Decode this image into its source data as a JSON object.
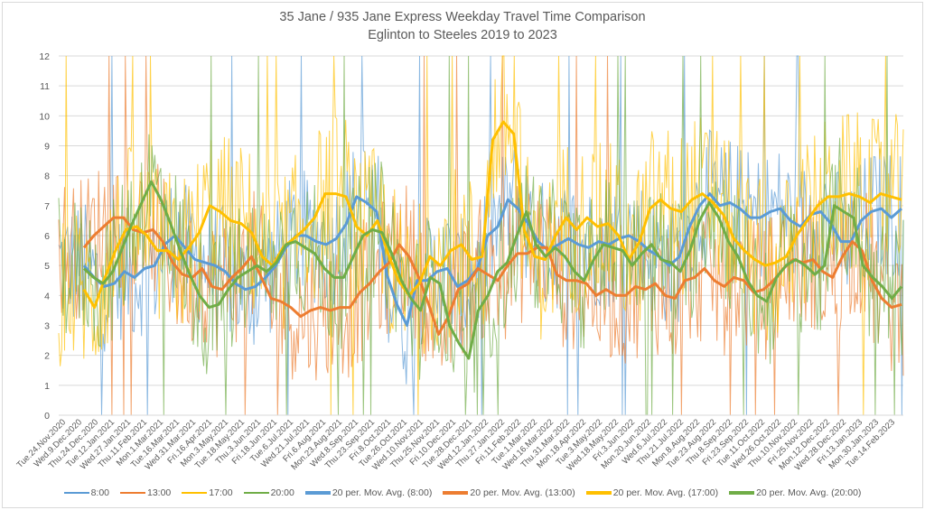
{
  "chart_data": {
    "type": "line",
    "title": "35 Jane / 935 Jane Express Weekday Travel Time Comparison",
    "subtitle": "Eglinton to Steeles 2019 to 2023",
    "xlabel": "",
    "ylabel": "",
    "ylim": [
      0,
      12
    ],
    "yticks": [
      0,
      1,
      2,
      3,
      4,
      5,
      6,
      7,
      8,
      9,
      10,
      11,
      12
    ],
    "grid": true,
    "legend_position": "bottom",
    "x_tick_labels": [
      "Tue.24.Nov.2020",
      "Wed.9.Dec.2020",
      "Thu.24.Dec.2020",
      "Tue.12.Jan.2021",
      "Wed.27.Jan.2021",
      "Thu.11.Feb.2021",
      "Mon.1.Mar.2021",
      "Tue.16.Mar.2021",
      "Wed.31.Mar.2021",
      "Fri.16.Apr.2021",
      "Mon.3.May.2021",
      "Tue.18.May.2021",
      "Thu.3.Jun.2021",
      "Fri.18.Jun.2021",
      "Tue.6.Jul.2021",
      "Wed.21.Jul.2021",
      "Fri.6.Aug.2021",
      "Mon.23.Aug.2021",
      "Wed.8.Sep.2021",
      "Thu.23.Sep.2021",
      "Fri.8.Oct.2021",
      "Tue.26.Oct.2021",
      "Wed.10.Nov.2021",
      "Thu.25.Nov.2021",
      "Fri.10.Dec.2021",
      "Tue.28.Dec.2021",
      "Wed.12.Jan.2022",
      "Thu.27.Jan.2022",
      "Fri.11.Feb.2022",
      "Tue.1.Mar.2022",
      "Wed.16.Mar.2022",
      "Thu.31.Mar.2022",
      "Mon.18.Apr.2022",
      "Tue.3.May.2022",
      "Wed.18.May.2022",
      "Fri.3.Jun.2022",
      "Mon.20.Jun.2022",
      "Wed.6.Jul.2022",
      "Thu.21.Jul.2022",
      "Mon.8.Aug.2022",
      "Tue.23.Aug.2022",
      "Thu.8.Sep.2022",
      "Fri.23.Sep.2022",
      "Tue.11.Oct.2022",
      "Wed.26.Oct.2022",
      "Thu.10.Nov.2022",
      "Fri.25.Nov.2022",
      "Mon.12.Dec.2022",
      "Wed.28.Dec.2022",
      "Fri.13.Jan.2023",
      "Mon.30.Jan.2023",
      "Tue.14.Feb.2023"
    ],
    "points_per_tick": 11,
    "series": [
      {
        "name": "8:00",
        "color": "#5b9bd5",
        "width": "thin",
        "kind": "raw",
        "mean_from": "20 per. Mov. Avg. (8:00)",
        "spread": 2.2
      },
      {
        "name": "13:00",
        "color": "#ed7d31",
        "width": "thin",
        "kind": "raw",
        "mean_from": "20 per. Mov. Avg. (13:00)",
        "spread": 2.4
      },
      {
        "name": "17:00",
        "color": "#ffc000",
        "width": "thin",
        "kind": "raw",
        "mean_from": "20 per. Mov. Avg. (17:00)",
        "spread": 2.8
      },
      {
        "name": "20:00",
        "color": "#70ad47",
        "width": "thin",
        "kind": "raw",
        "mean_from": "20 per. Mov. Avg. (20:00)",
        "spread": 2.4
      },
      {
        "name": "20 per. Mov. Avg. (8:00)",
        "color": "#5b9bd5",
        "width": "thick",
        "kind": "avg",
        "values": [
          5.0,
          4.6,
          4.3,
          4.4,
          4.8,
          4.6,
          4.9,
          5.0,
          5.7,
          6.0,
          5.6,
          5.2,
          5.1,
          5.0,
          4.8,
          4.4,
          4.2,
          4.3,
          4.6,
          5.0,
          5.6,
          6.0,
          6.0,
          5.8,
          5.7,
          5.9,
          6.4,
          7.3,
          7.1,
          6.8,
          4.7,
          3.7,
          3.0,
          4.5,
          4.5,
          4.8,
          4.9,
          4.3,
          4.5,
          4.9,
          6.0,
          6.3,
          7.2,
          6.9,
          6.4,
          5.8,
          5.5,
          5.7,
          5.9,
          5.7,
          5.6,
          5.8,
          5.7,
          5.9,
          6.0,
          5.8,
          5.5,
          5.3,
          5.0,
          5.3,
          6.3,
          7.0,
          7.4,
          7.0,
          7.1,
          6.9,
          6.6,
          6.6,
          6.8,
          6.9,
          6.5,
          6.3,
          6.7,
          6.8,
          6.4,
          5.8,
          5.8,
          6.5,
          6.8,
          6.9,
          6.6,
          6.9
        ]
      },
      {
        "name": "20 per. Mov. Avg. (13:00)",
        "color": "#ed7d31",
        "width": "thick",
        "kind": "avg",
        "values": [
          5.6,
          6.0,
          6.3,
          6.6,
          6.6,
          6.2,
          6.1,
          6.2,
          5.8,
          5.1,
          4.7,
          4.6,
          4.9,
          4.3,
          4.2,
          4.6,
          4.9,
          5.3,
          4.6,
          3.9,
          3.8,
          3.6,
          3.3,
          3.5,
          3.6,
          3.5,
          3.6,
          3.6,
          4.1,
          4.4,
          4.8,
          5.1,
          5.7,
          5.3,
          4.6,
          3.7,
          2.7,
          3.3,
          4.2,
          4.4,
          4.9,
          4.7,
          4.5,
          5.0,
          5.4,
          5.4,
          5.6,
          5.6,
          4.7,
          4.5,
          4.5,
          4.4,
          4.0,
          4.2,
          4.0,
          4.0,
          4.3,
          4.2,
          4.4,
          4.0,
          3.9,
          4.5,
          4.6,
          4.9,
          4.5,
          4.3,
          4.6,
          4.5,
          4.1,
          4.2,
          4.5,
          4.9,
          5.2,
          5.1,
          5.2,
          4.8,
          4.6,
          5.3,
          5.8,
          5.5,
          4.5,
          3.9,
          3.6,
          3.7
        ]
      },
      {
        "name": "20 per. Mov. Avg. (17:00)",
        "color": "#ffc000",
        "width": "thick",
        "kind": "avg",
        "values": [
          4.2,
          3.6,
          4.6,
          5.5,
          6.2,
          6.3,
          6.0,
          5.5,
          5.5,
          5.2,
          5.6,
          6.1,
          7.0,
          6.8,
          6.5,
          6.4,
          6.1,
          5.3,
          5.0,
          5.6,
          5.9,
          6.2,
          6.6,
          7.4,
          7.4,
          7.3,
          6.3,
          6.0,
          6.5,
          5.4,
          4.5,
          4.0,
          4.4,
          5.3,
          5.0,
          5.5,
          5.7,
          5.2,
          5.3,
          9.2,
          9.8,
          9.4,
          6.2,
          5.3,
          5.2,
          6.0,
          6.6,
          6.2,
          6.6,
          6.3,
          6.4,
          6.0,
          5.2,
          5.8,
          6.9,
          7.2,
          6.9,
          6.8,
          7.2,
          7.4,
          7.1,
          6.7,
          5.9,
          5.5,
          5.2,
          5.0,
          5.1,
          5.3,
          6.0,
          6.5,
          7.0,
          7.3,
          7.3,
          7.4,
          7.3,
          7.1,
          7.4,
          7.3,
          7.2
        ]
      },
      {
        "name": "20 per. Mov. Avg. (20:00)",
        "color": "#70ad47",
        "width": "thick",
        "kind": "avg",
        "values": [
          4.9,
          4.6,
          4.4,
          4.8,
          5.6,
          6.4,
          7.1,
          7.8,
          7.2,
          6.4,
          5.5,
          4.7,
          4.0,
          3.6,
          3.7,
          4.2,
          4.6,
          4.8,
          5.0,
          4.8,
          5.1,
          5.7,
          5.8,
          5.6,
          5.4,
          4.9,
          4.6,
          4.6,
          5.3,
          6.0,
          6.2,
          6.1,
          5.4,
          4.5,
          3.9,
          3.5,
          4.6,
          4.4,
          3.0,
          2.4,
          1.9,
          3.5,
          4.0,
          4.8,
          5.1,
          6.0,
          6.8,
          5.7,
          5.3,
          5.6,
          5.3,
          4.8,
          4.5,
          5.2,
          5.7,
          5.6,
          5.5,
          5.0,
          5.4,
          5.7,
          5.2,
          5.1,
          4.8,
          5.5,
          6.5,
          7.1,
          6.6,
          5.8,
          5.3,
          4.5,
          4.0,
          3.8,
          4.6,
          5.0,
          5.2,
          5.0,
          4.7,
          5.0,
          7.0,
          6.8,
          6.6,
          5.0,
          4.6,
          4.3,
          3.9,
          4.3
        ]
      }
    ]
  }
}
